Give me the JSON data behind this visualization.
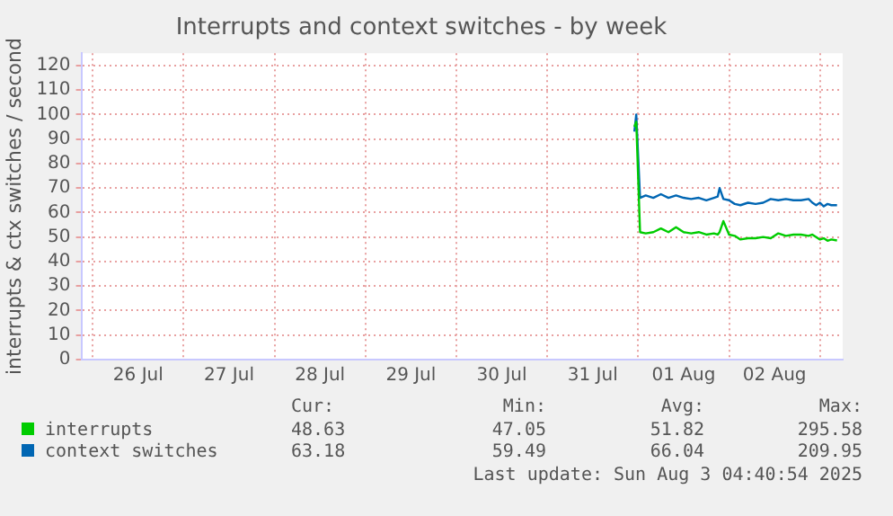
{
  "chart_data": {
    "type": "line",
    "title": "Interrupts and context switches - by week",
    "ylabel": "interrupts & ctx switches / second",
    "xlim": [
      "2025-07-25T21:00",
      "2025-08-03T06:00"
    ],
    "xticks": [
      {
        "value": "2025-07-26T00:00",
        "label": null
      },
      {
        "value": "2025-07-26T12:00",
        "label": "26 Jul"
      },
      {
        "value": "2025-07-27T00:00",
        "label": null
      },
      {
        "value": "2025-07-27T12:00",
        "label": "27 Jul"
      },
      {
        "value": "2025-07-28T00:00",
        "label": null
      },
      {
        "value": "2025-07-28T12:00",
        "label": "28 Jul"
      },
      {
        "value": "2025-07-29T00:00",
        "label": null
      },
      {
        "value": "2025-07-29T12:00",
        "label": "29 Jul"
      },
      {
        "value": "2025-07-30T00:00",
        "label": null
      },
      {
        "value": "2025-07-30T12:00",
        "label": "30 Jul"
      },
      {
        "value": "2025-07-31T00:00",
        "label": null
      },
      {
        "value": "2025-07-31T12:00",
        "label": "31 Jul"
      },
      {
        "value": "2025-08-01T00:00",
        "label": null
      },
      {
        "value": "2025-08-01T12:00",
        "label": "01 Aug"
      },
      {
        "value": "2025-08-02T00:00",
        "label": null
      },
      {
        "value": "2025-08-02T12:00",
        "label": "02 Aug"
      },
      {
        "value": "2025-08-03T00:00",
        "label": null
      }
    ],
    "ylim": [
      0,
      125
    ],
    "yticks": [
      0,
      10,
      20,
      30,
      40,
      50,
      60,
      70,
      80,
      90,
      100,
      110,
      120
    ],
    "grid": true,
    "legend": "bottom",
    "marker": "none",
    "line_style": "solid",
    "x": [
      "2025-07-31T23:00",
      "2025-07-31T23:30",
      "2025-08-01T00:30",
      "2025-08-01T02:00",
      "2025-08-01T04:00",
      "2025-08-01T06:00",
      "2025-08-01T08:00",
      "2025-08-01T10:00",
      "2025-08-01T12:00",
      "2025-08-01T14:00",
      "2025-08-01T16:00",
      "2025-08-01T18:00",
      "2025-08-01T20:00",
      "2025-08-01T21:00",
      "2025-08-01T21:30",
      "2025-08-01T22:30",
      "2025-08-02T00:00",
      "2025-08-02T01:30",
      "2025-08-02T03:00",
      "2025-08-02T05:00",
      "2025-08-02T07:00",
      "2025-08-02T09:00",
      "2025-08-02T11:00",
      "2025-08-02T13:00",
      "2025-08-02T15:00",
      "2025-08-02T17:00",
      "2025-08-02T19:00",
      "2025-08-02T21:00",
      "2025-08-02T22:00",
      "2025-08-02T23:00",
      "2025-08-03T00:00",
      "2025-08-03T01:00",
      "2025-08-03T02:00",
      "2025-08-03T03:00",
      "2025-08-03T04:30"
    ],
    "series": [
      {
        "name": "interrupts",
        "color": "#00cc00",
        "values": [
          95,
          97,
          52,
          51.5,
          52,
          53.5,
          52,
          54,
          52,
          51.5,
          52,
          51,
          51.5,
          51,
          52,
          56.5,
          51,
          50.5,
          49,
          49.5,
          49.5,
          50,
          49.5,
          51.5,
          50.5,
          51,
          51,
          50.5,
          51,
          50,
          49,
          49.5,
          48.5,
          49,
          48.6
        ]
      },
      {
        "name": "context switches",
        "color": "#0066b3",
        "values": [
          93,
          100,
          66,
          67,
          66,
          67.5,
          66,
          67,
          66,
          65.5,
          66,
          65,
          66,
          66.5,
          70,
          65.5,
          65,
          63.5,
          63,
          64,
          63.5,
          64,
          65.5,
          65,
          65.5,
          65,
          65,
          65.5,
          64,
          63,
          64,
          62.5,
          63.5,
          63,
          63
        ]
      }
    ],
    "annotations": [
      "Cur:",
      "Min:",
      "Avg:",
      "Max:",
      "48.63",
      "47.05",
      "51.82",
      "295.58",
      "63.18",
      "59.49",
      "66.04",
      "209.95",
      "Last update: Sun Aug  3 04:40:54 2025"
    ]
  }
}
